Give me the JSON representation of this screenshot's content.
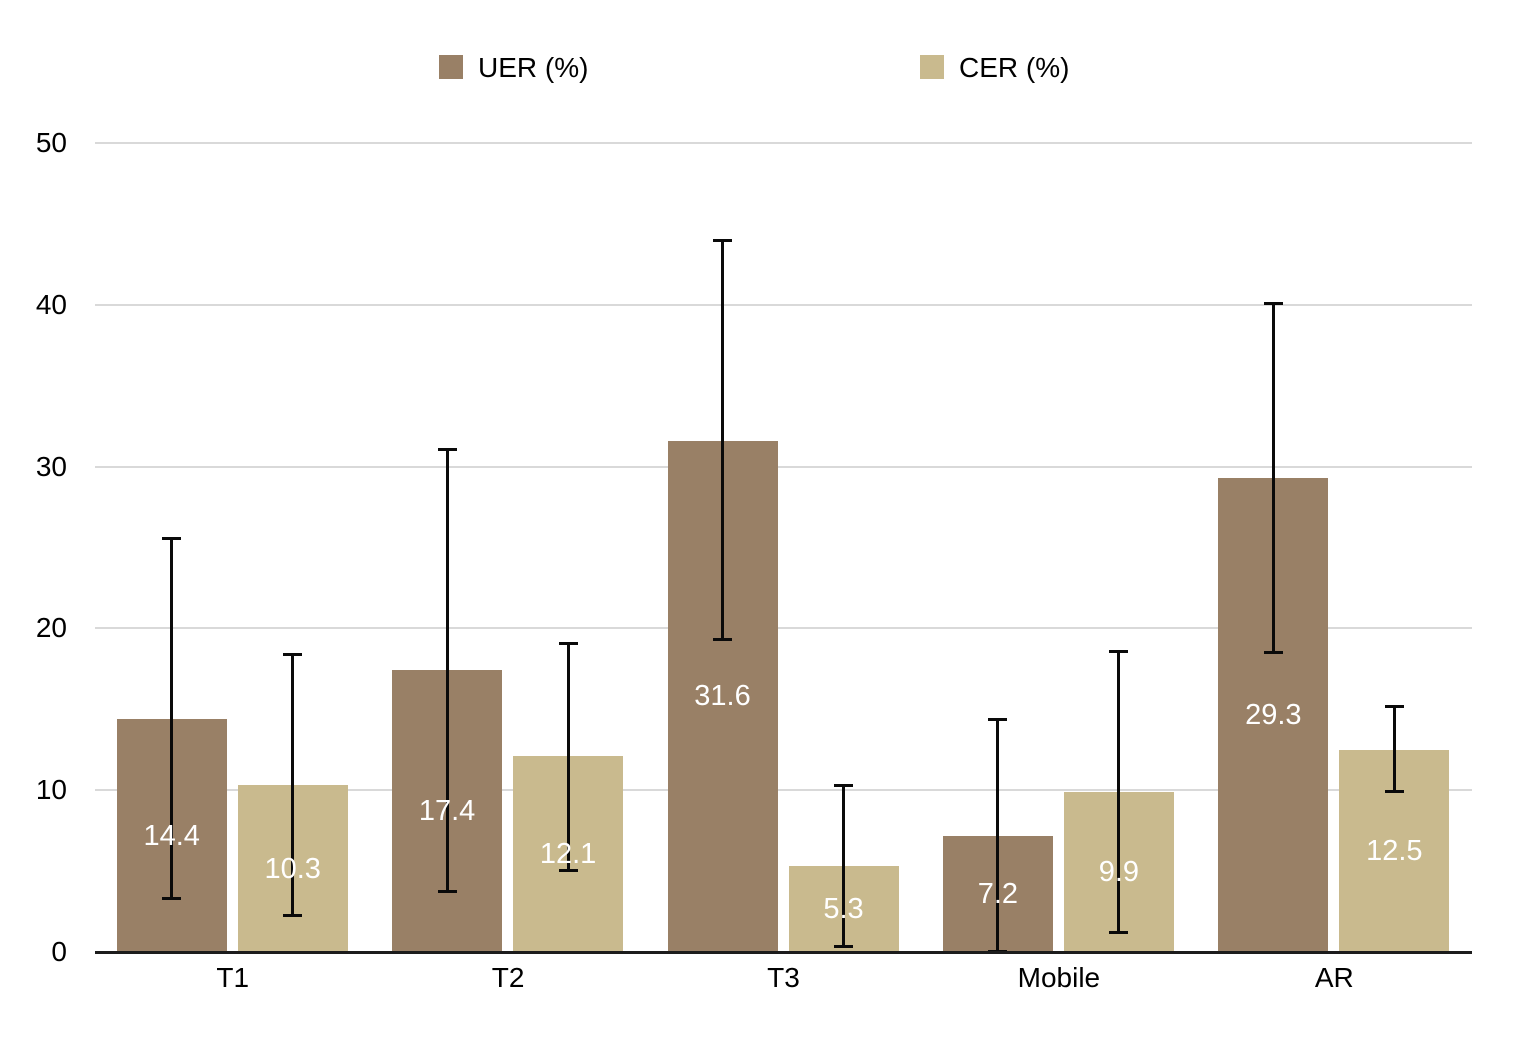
{
  "legend": {
    "items": [
      {
        "label": "UER (%)",
        "color": "#998066"
      },
      {
        "label": "CER (%)",
        "color": "#C9BA8E"
      }
    ]
  },
  "colors": {
    "uer_bar": "#998066",
    "cer_bar": "#C9BA8E",
    "gridline": "#D9D9D9",
    "axis_line": "#1C1C1C",
    "error_bar": "#0A0A0A",
    "value_label_text": "#FFFFFF",
    "axis_text": "#000000"
  },
  "chart_data": {
    "type": "bar",
    "title": "",
    "categories": [
      "T1",
      "T2",
      "T3",
      "Mobile",
      "AR"
    ],
    "series": [
      {
        "name": "UER (%)",
        "color": "#998066",
        "values": [
          14.4,
          17.4,
          31.6,
          7.2,
          29.3
        ],
        "error_low": [
          3.3,
          3.7,
          19.3,
          0.0,
          18.5
        ],
        "error_high": [
          25.6,
          31.1,
          44.0,
          14.4,
          40.1
        ]
      },
      {
        "name": "CER (%)",
        "color": "#C9BA8E",
        "values": [
          10.3,
          12.1,
          5.3,
          9.9,
          12.5
        ],
        "error_low": [
          2.2,
          5.0,
          0.3,
          1.2,
          9.9
        ],
        "error_high": [
          18.4,
          19.1,
          10.3,
          18.6,
          15.2
        ]
      }
    ],
    "ylabel": "",
    "xlabel": "",
    "ylim": [
      0,
      50
    ],
    "yticks": [
      0,
      10,
      20,
      30,
      40,
      50
    ],
    "grid": true,
    "legend_position": "top",
    "value_labels": true,
    "error_bars": true
  }
}
